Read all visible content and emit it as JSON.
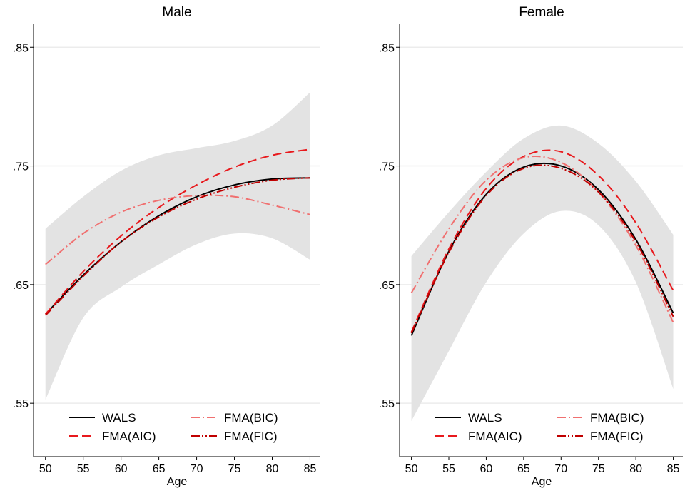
{
  "chart_data": [
    {
      "type": "line",
      "title": "Male",
      "xlabel": "Age",
      "ylabel": "",
      "xlim": [
        50,
        85
      ],
      "ylim": [
        0.505,
        0.87
      ],
      "x_ticks": [
        50,
        55,
        60,
        65,
        70,
        75,
        80,
        85
      ],
      "x_tick_labels": [
        "50",
        "55",
        "60",
        "65",
        "70",
        "75",
        "80",
        "85"
      ],
      "y_ticks": [
        0.55,
        0.65,
        0.75,
        0.85
      ],
      "y_tick_labels": [
        ".55",
        ".65",
        ".75",
        ".85"
      ],
      "grid": "horizontal",
      "legend_position": "bottom",
      "x": [
        50,
        55,
        60,
        65,
        70,
        75,
        80,
        85
      ],
      "band": {
        "lower": [
          0.553,
          0.622,
          0.648,
          0.667,
          0.684,
          0.693,
          0.689,
          0.671
        ],
        "upper": [
          0.697,
          0.724,
          0.746,
          0.759,
          0.765,
          0.771,
          0.784,
          0.812
        ]
      },
      "series": [
        {
          "name": "WALS",
          "color": "#000000",
          "dash": "solid",
          "values": [
            0.625,
            0.658,
            0.686,
            0.708,
            0.724,
            0.734,
            0.739,
            0.74
          ]
        },
        {
          "name": "FMA(AIC)",
          "color": "#e8191d",
          "dash": "dash",
          "values": [
            0.625,
            0.661,
            0.691,
            0.715,
            0.734,
            0.749,
            0.759,
            0.764
          ]
        },
        {
          "name": "FMA(BIC)",
          "color": "#f07070",
          "dash": "dashdot",
          "values": [
            0.667,
            0.693,
            0.711,
            0.721,
            0.725,
            0.724,
            0.717,
            0.709
          ]
        },
        {
          "name": "FMA(FIC)",
          "color": "#c00000",
          "dash": "dashdotdot",
          "values": [
            0.624,
            0.657,
            0.686,
            0.707,
            0.722,
            0.732,
            0.738,
            0.74
          ]
        }
      ]
    },
    {
      "type": "line",
      "title": "Female",
      "xlabel": "Age",
      "ylabel": "",
      "xlim": [
        50,
        85
      ],
      "ylim": [
        0.505,
        0.87
      ],
      "x_ticks": [
        50,
        55,
        60,
        65,
        70,
        75,
        80,
        85
      ],
      "x_tick_labels": [
        "50",
        "55",
        "60",
        "65",
        "70",
        "75",
        "80",
        "85"
      ],
      "y_ticks": [
        0.55,
        0.65,
        0.75,
        0.85
      ],
      "y_tick_labels": [
        ".55",
        ".65",
        ".75",
        ".85"
      ],
      "grid": "horizontal",
      "legend_position": "bottom",
      "x": [
        50,
        55,
        60,
        65,
        70,
        75,
        80,
        85
      ],
      "band": {
        "lower": [
          0.535,
          0.594,
          0.652,
          0.693,
          0.712,
          0.7,
          0.652,
          0.562
        ],
        "upper": [
          0.674,
          0.711,
          0.745,
          0.773,
          0.784,
          0.769,
          0.737,
          0.692
        ]
      },
      "series": [
        {
          "name": "WALS",
          "color": "#000000",
          "dash": "solid",
          "values": [
            0.607,
            0.678,
            0.726,
            0.749,
            0.75,
            0.73,
            0.688,
            0.626
          ]
        },
        {
          "name": "FMA(AIC)",
          "color": "#e8191d",
          "dash": "dash",
          "values": [
            0.61,
            0.68,
            0.731,
            0.758,
            0.762,
            0.742,
            0.702,
            0.645
          ]
        },
        {
          "name": "FMA(BIC)",
          "color": "#f07070",
          "dash": "dashdot",
          "values": [
            0.643,
            0.697,
            0.738,
            0.757,
            0.753,
            0.728,
            0.683,
            0.618
          ]
        },
        {
          "name": "FMA(FIC)",
          "color": "#c00000",
          "dash": "dashdotdot",
          "values": [
            0.609,
            0.677,
            0.725,
            0.748,
            0.748,
            0.728,
            0.686,
            0.623
          ]
        }
      ]
    }
  ]
}
